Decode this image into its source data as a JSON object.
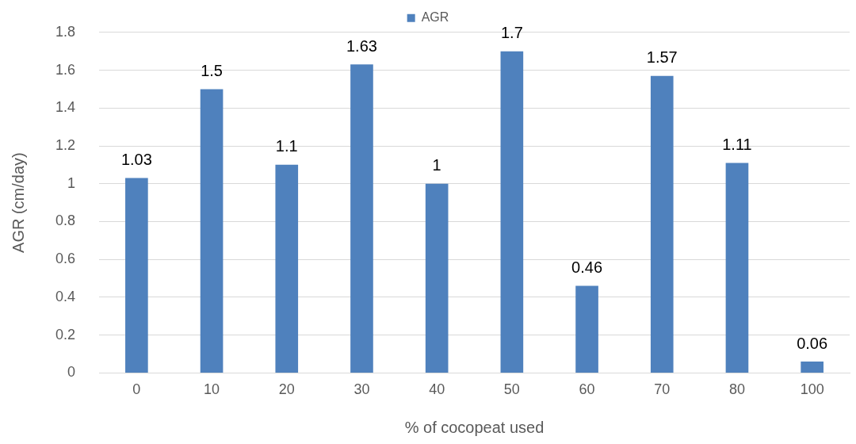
{
  "chart_data": {
    "type": "bar",
    "xlabel": "% of cocopeat used",
    "ylabel": "AGR (cm/day)",
    "categories": [
      "0",
      "10",
      "20",
      "30",
      "40",
      "50",
      "60",
      "70",
      "80",
      "100"
    ],
    "series": [
      {
        "name": "AGR",
        "color": "#4f81bd",
        "values": [
          1.03,
          1.5,
          1.1,
          1.63,
          1,
          1.7,
          0.46,
          1.57,
          1.11,
          0.06
        ]
      }
    ],
    "ylim": [
      0,
      1.8
    ],
    "yticks": [
      0,
      0.2,
      0.4,
      0.6,
      0.8,
      1,
      1.2,
      1.4,
      1.6,
      1.8
    ],
    "grid": "y",
    "legend": "top",
    "data_labels": true
  }
}
